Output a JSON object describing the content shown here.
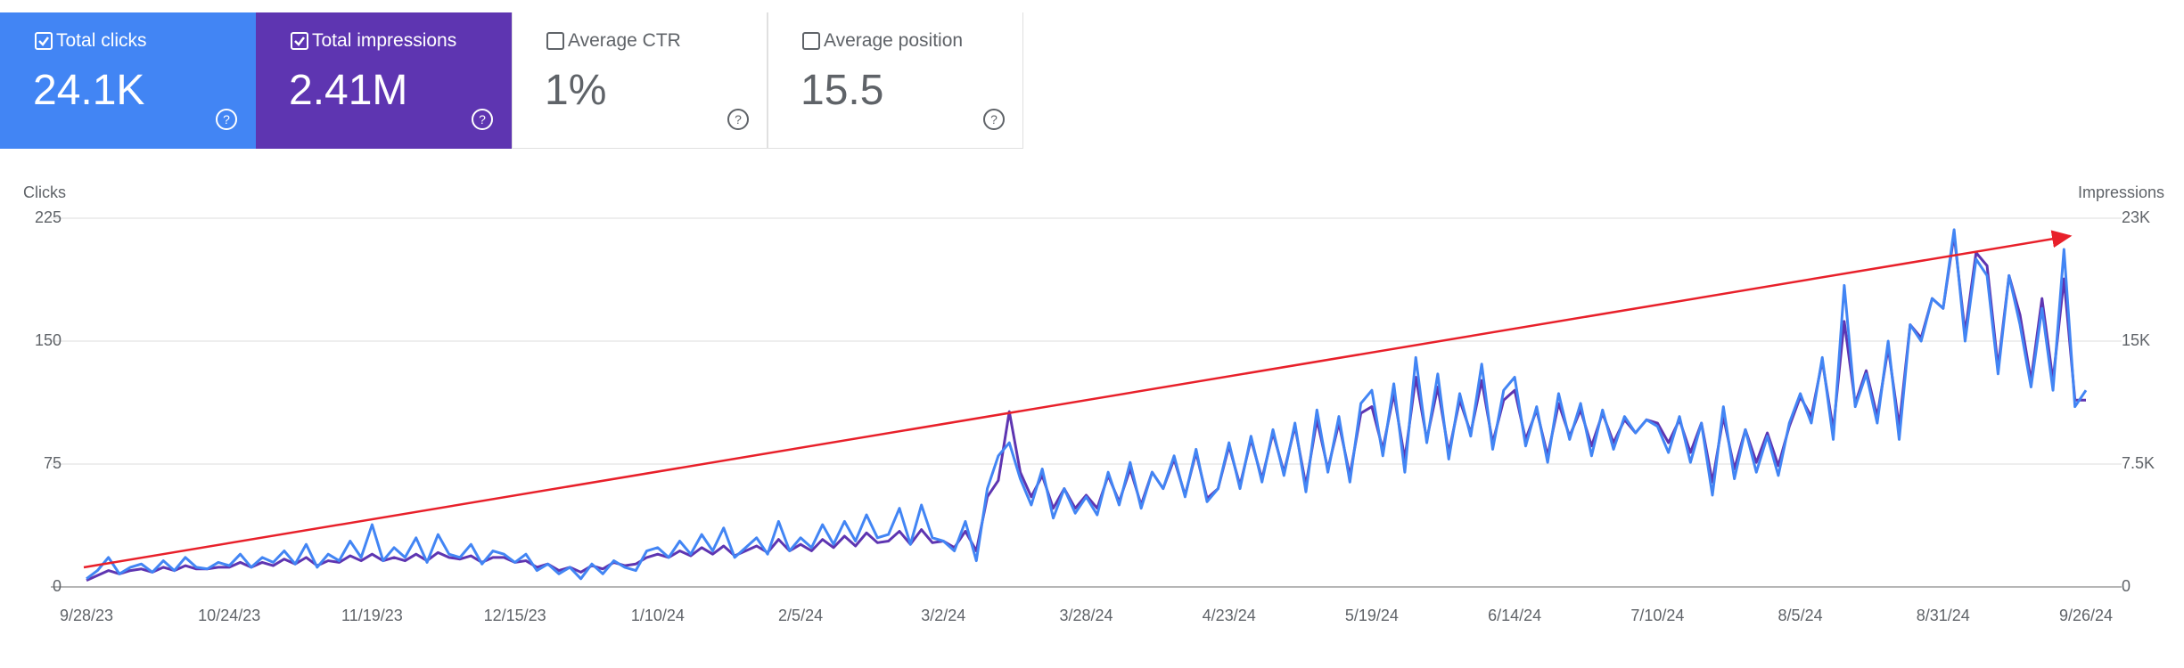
{
  "cards": [
    {
      "label": "Total clicks",
      "value": "24.1K"
    },
    {
      "label": "Total impressions",
      "value": "2.41M"
    },
    {
      "label": "Average CTR",
      "value": "1%"
    },
    {
      "label": "Average position",
      "value": "15.5"
    }
  ],
  "chart_data": {
    "type": "line",
    "y_label": "Clicks",
    "y2_label": "Impressions",
    "grid": true,
    "categories": [
      "9/28/23",
      null,
      null,
      null,
      null,
      null,
      null,
      null,
      null,
      null,
      null,
      null,
      null,
      "10/24/23",
      null,
      null,
      null,
      null,
      null,
      null,
      null,
      null,
      null,
      null,
      null,
      null,
      "11/19/23",
      null,
      null,
      null,
      null,
      null,
      null,
      null,
      null,
      null,
      null,
      null,
      null,
      "12/15/23",
      null,
      null,
      null,
      null,
      null,
      null,
      null,
      null,
      null,
      null,
      null,
      null,
      "1/10/24",
      null,
      null,
      null,
      null,
      null,
      null,
      null,
      null,
      null,
      null,
      null,
      null,
      "2/5/24",
      null,
      null,
      null,
      null,
      null,
      null,
      null,
      null,
      null,
      null,
      null,
      null,
      "3/2/24",
      null,
      null,
      null,
      null,
      null,
      null,
      null,
      null,
      null,
      null,
      null,
      null,
      "3/28/24",
      null,
      null,
      null,
      null,
      null,
      null,
      null,
      null,
      null,
      null,
      null,
      null,
      "4/23/24",
      null,
      null,
      null,
      null,
      null,
      null,
      null,
      null,
      null,
      null,
      null,
      null,
      "5/19/24",
      null,
      null,
      null,
      null,
      null,
      null,
      null,
      null,
      null,
      null,
      null,
      null,
      "6/14/24",
      null,
      null,
      null,
      null,
      null,
      null,
      null,
      null,
      null,
      null,
      null,
      null,
      "7/10/24",
      null,
      null,
      null,
      null,
      null,
      null,
      null,
      null,
      null,
      null,
      null,
      null,
      "8/5/24",
      null,
      null,
      null,
      null,
      null,
      null,
      null,
      null,
      null,
      null,
      null,
      null,
      "8/31/24",
      null,
      null,
      null,
      null,
      null,
      null,
      null,
      null,
      null,
      null,
      null,
      null,
      "9/26/24"
    ],
    "ylim": [
      0,
      225
    ],
    "yticks": [
      0,
      75,
      150,
      225
    ],
    "y2lim": [
      0,
      22500
    ],
    "y2ticks": [
      0,
      {
        "value": 7500,
        "label": "7.5K"
      },
      {
        "value": 15000,
        "label": "15K"
      },
      {
        "value": 22500,
        "label": "23K"
      }
    ],
    "series": [
      {
        "name": "Total clicks",
        "color": "#4285f4",
        "values": [
          5,
          10,
          18,
          8,
          12,
          14,
          9,
          16,
          10,
          18,
          12,
          11,
          15,
          13,
          20,
          12,
          18,
          15,
          22,
          14,
          26,
          12,
          20,
          16,
          28,
          18,
          38,
          16,
          24,
          18,
          30,
          15,
          32,
          20,
          18,
          26,
          14,
          22,
          20,
          15,
          20,
          10,
          14,
          8,
          12,
          5,
          14,
          8,
          16,
          12,
          10,
          22,
          24,
          18,
          28,
          20,
          32,
          22,
          36,
          18,
          24,
          30,
          20,
          40,
          22,
          30,
          24,
          38,
          26,
          40,
          28,
          44,
          30,
          32,
          48,
          26,
          50,
          30,
          28,
          22,
          40,
          16,
          60,
          80,
          88,
          66,
          50,
          72,
          42,
          60,
          45,
          55,
          44,
          70,
          50,
          76,
          48,
          70,
          60,
          80,
          55,
          84,
          52,
          60,
          88,
          60,
          92,
          64,
          96,
          68,
          100,
          58,
          108,
          70,
          104,
          64,
          112,
          120,
          80,
          124,
          70,
          140,
          88,
          130,
          78,
          118,
          92,
          136,
          84,
          120,
          128,
          86,
          110,
          76,
          118,
          90,
          112,
          80,
          108,
          84,
          104,
          94,
          102,
          98,
          82,
          104,
          76,
          100,
          56,
          110,
          66,
          96,
          70,
          92,
          68,
          100,
          118,
          100,
          140,
          90,
          184,
          110,
          130,
          100,
          150,
          90,
          160,
          150,
          176,
          170,
          218,
          150,
          200,
          190,
          130,
          190,
          160,
          122,
          170,
          120,
          206,
          110,
          120
        ]
      },
      {
        "name": "Total impressions",
        "color": "#5e35b1",
        "axis": "y2",
        "values": [
          400,
          700,
          1000,
          800,
          1000,
          1100,
          900,
          1200,
          1000,
          1300,
          1100,
          1100,
          1200,
          1200,
          1500,
          1200,
          1500,
          1300,
          1700,
          1400,
          1800,
          1300,
          1600,
          1500,
          1900,
          1600,
          2000,
          1600,
          1800,
          1600,
          2000,
          1600,
          2100,
          1800,
          1700,
          1900,
          1500,
          1800,
          1800,
          1500,
          1600,
          1200,
          1400,
          1000,
          1200,
          900,
          1300,
          1100,
          1500,
          1300,
          1400,
          1800,
          2000,
          1800,
          2200,
          1900,
          2400,
          2000,
          2500,
          1900,
          2200,
          2500,
          2100,
          2900,
          2200,
          2600,
          2200,
          2900,
          2400,
          3100,
          2500,
          3300,
          2700,
          2800,
          3400,
          2600,
          3500,
          2700,
          2800,
          2400,
          3400,
          2200,
          5500,
          6500,
          10700,
          7000,
          5500,
          6800,
          4800,
          6000,
          4800,
          5600,
          4800,
          6800,
          5200,
          7200,
          5000,
          7000,
          6000,
          7800,
          5600,
          8200,
          5400,
          6000,
          8600,
          6200,
          9000,
          6600,
          9400,
          7000,
          9800,
          6200,
          10200,
          7200,
          10000,
          6800,
          10600,
          11000,
          8400,
          11800,
          7800,
          12800,
          9000,
          12200,
          8200,
          11400,
          9400,
          12600,
          8800,
          11400,
          12000,
          9000,
          10800,
          8000,
          11200,
          9200,
          10800,
          8600,
          10600,
          8800,
          10200,
          9400,
          10200,
          10000,
          8800,
          10200,
          8200,
          10000,
          6400,
          10400,
          7200,
          9600,
          7600,
          9400,
          7400,
          9800,
          11600,
          10400,
          13800,
          9600,
          16200,
          11200,
          13200,
          10400,
          14600,
          9800,
          16000,
          15200,
          17600,
          17000,
          21500,
          15500,
          20400,
          19600,
          13400,
          19000,
          16600,
          12600,
          17600,
          12600,
          18800,
          11400,
          11400
        ]
      }
    ]
  }
}
